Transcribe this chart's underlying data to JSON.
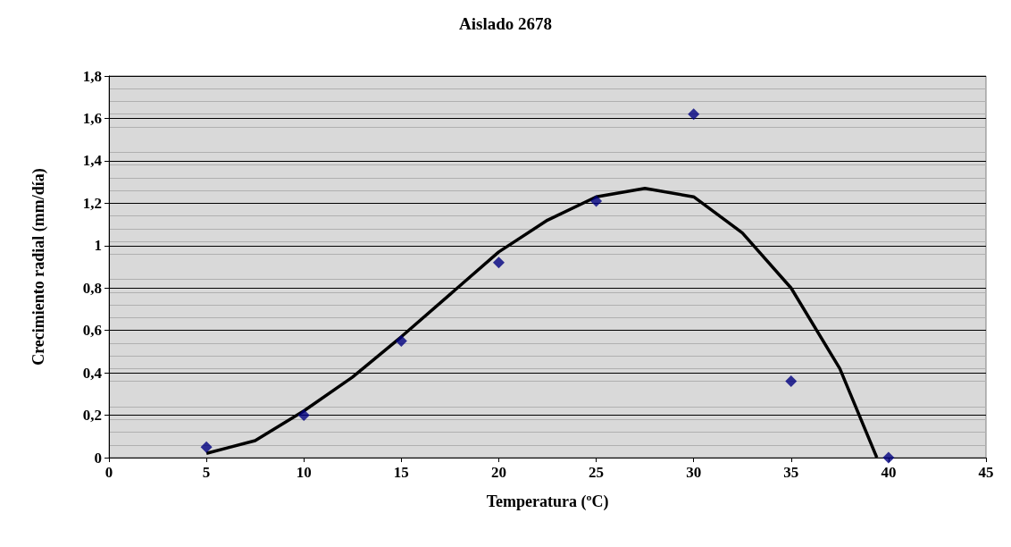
{
  "chart_data": {
    "type": "scatter",
    "title": "Aislado 2678",
    "xlabel": "Temperatura (ºC)",
    "ylabel": "Crecimiento radial (mm/día)",
    "x": [
      5,
      10,
      15,
      20,
      25,
      30,
      35,
      40
    ],
    "series": [
      {
        "color": "#000080",
        "marker": "diamond",
        "values": [
          0.05,
          0.2,
          0.55,
          0.92,
          1.21,
          1.62,
          0.36,
          0
        ]
      },
      {
        "type": "line",
        "color": "#000000",
        "marker": "none",
        "x": [
          5,
          7.5,
          10,
          12.5,
          15,
          17.5,
          20,
          22.5,
          25,
          27.5,
          30,
          32.5,
          35,
          37.5,
          39.4
        ],
        "values": [
          0.02,
          0.08,
          0.22,
          0.38,
          0.57,
          0.77,
          0.97,
          1.12,
          1.23,
          1.27,
          1.23,
          1.06,
          0.8,
          0.42,
          0
        ]
      }
    ],
    "xlim": [
      0,
      45
    ],
    "xticks": [
      0,
      5,
      10,
      15,
      20,
      25,
      30,
      35,
      40,
      45
    ],
    "ylim": [
      0,
      1.8
    ],
    "yticks": [
      0,
      {
        "value": 0.2,
        "label": "0,2"
      },
      {
        "value": 0.4,
        "label": "0,4"
      },
      {
        "value": 0.6,
        "label": "0,6"
      },
      {
        "value": 0.8,
        "label": "0,8"
      },
      1,
      {
        "value": 1.2,
        "label": "1,2"
      },
      {
        "value": 1.4,
        "label": "1,4"
      },
      {
        "value": 1.6,
        "label": "1,6"
      },
      {
        "value": 1.8,
        "label": "1,8"
      }
    ],
    "grid": "y"
  }
}
